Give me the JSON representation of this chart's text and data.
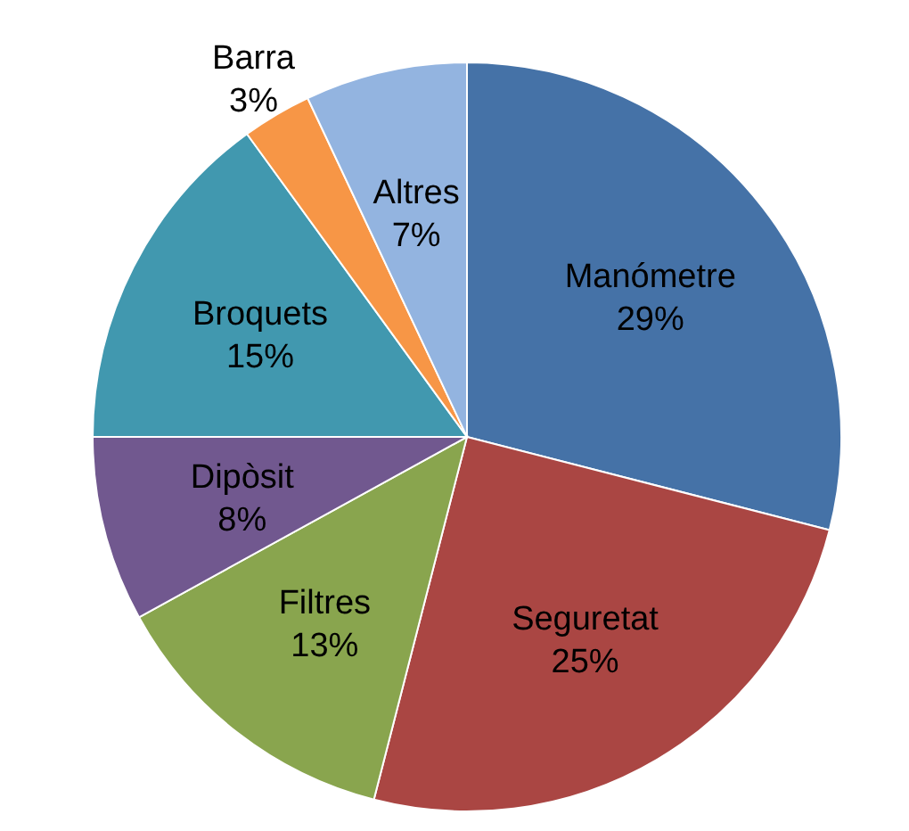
{
  "chart_data": {
    "type": "pie",
    "categories": [
      "Manómetre",
      "Seguretat",
      "Filtres",
      "Dipòsit",
      "Broquets",
      "Barra",
      "Altres"
    ],
    "values": [
      29,
      25,
      13,
      8,
      15,
      3,
      7
    ],
    "colors": [
      "#4572a7",
      "#aa4643",
      "#89a54e",
      "#71588f",
      "#4198af",
      "#f79646",
      "#93b4e0"
    ],
    "value_labels": [
      "29%",
      "25%",
      "13%",
      "8%",
      "15%",
      "3%",
      "7%"
    ],
    "legend": false
  }
}
